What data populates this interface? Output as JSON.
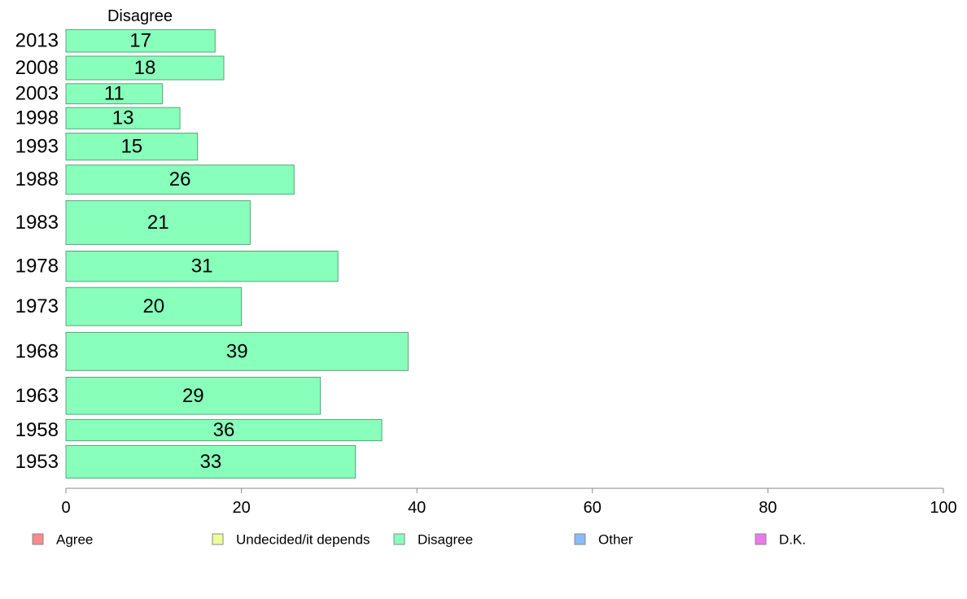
{
  "chart_data": {
    "type": "bar",
    "orientation": "horizontal",
    "panel_title": "Disagree",
    "categories": [
      "2013",
      "2008",
      "2003",
      "1998",
      "1993",
      "1988",
      "1983",
      "1978",
      "1973",
      "1968",
      "1963",
      "1958",
      "1953"
    ],
    "series": [
      {
        "name": "Disagree",
        "color": "#88ffbb",
        "values": [
          17,
          18,
          11,
          13,
          15,
          26,
          21,
          31,
          20,
          39,
          29,
          36,
          33
        ],
        "labels": [
          "17",
          "18",
          "11",
          "13",
          "15",
          "26",
          "21",
          "31",
          "20",
          "39",
          "29",
          "36",
          "33"
        ]
      }
    ],
    "xlim": [
      0,
      100
    ],
    "xticks": [
      0,
      20,
      40,
      60,
      80,
      100
    ],
    "xtick_labels": [
      "0",
      "20",
      "40",
      "60",
      "80",
      "100"
    ],
    "relative_band_sizes": [
      1.0,
      1.05,
      0.9,
      0.95,
      1.2,
      1.3,
      1.95,
      1.35,
      1.7,
      1.7,
      1.65,
      0.95,
      1.45
    ],
    "grid": false,
    "legend": {
      "position": "bottom",
      "items": [
        {
          "label": "Agree",
          "color": "#ff8888"
        },
        {
          "label": "Undecided/it depends",
          "color": "#eeff99"
        },
        {
          "label": "Disagree",
          "color": "#88ffbb"
        },
        {
          "label": "Other",
          "color": "#88bbff"
        },
        {
          "label": "D.K.",
          "color": "#ee77ee"
        }
      ]
    }
  }
}
